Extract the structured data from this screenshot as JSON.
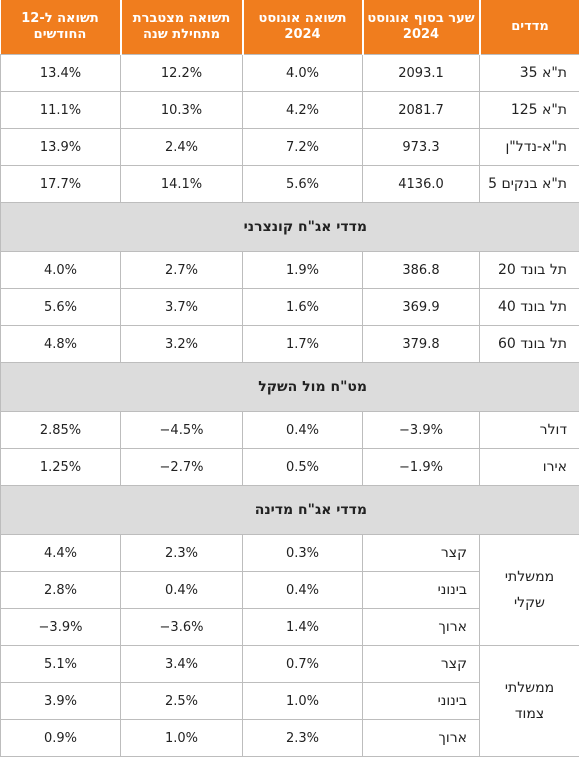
{
  "header": {
    "col_index": "מדדים",
    "col_rate": "שער בסוף אוגוסט 2024",
    "col_aug": "תשואה אוגוסט 2024",
    "col_ytd": "תשואה מצטברת מתחילת שנה",
    "col_12m": "תשואה ל-12 החודשים"
  },
  "stocks": [
    {
      "name": "ת\"א 35",
      "rate": "2093.1",
      "aug": "4.0%",
      "ytd": "12.2%",
      "m12": "13.4%"
    },
    {
      "name": "ת\"א 125",
      "rate": "2081.7",
      "aug": "4.2%",
      "ytd": "10.3%",
      "m12": "11.1%"
    },
    {
      "name": "ת\"א-נדל\"ן",
      "rate": "973.3",
      "aug": "7.2%",
      "ytd": "2.4%",
      "m12": "13.9%"
    },
    {
      "name": "ת\"א בנקים 5",
      "rate": "4136.0",
      "aug": "5.6%",
      "ytd": "14.1%",
      "m12": "17.7%"
    }
  ],
  "section_corp": "מדדי אג\"ח קונצרני",
  "corp": [
    {
      "name": "תל בונד 20",
      "rate": "386.8",
      "aug": "1.9%",
      "ytd": "2.7%",
      "m12": "4.0%"
    },
    {
      "name": "תל בונד 40",
      "rate": "369.9",
      "aug": "1.6%",
      "ytd": "3.7%",
      "m12": "5.6%"
    },
    {
      "name": "תל בונד 60",
      "rate": "379.8",
      "aug": "1.7%",
      "ytd": "3.2%",
      "m12": "4.8%"
    }
  ],
  "section_fx": "מט\"ח מול השקל",
  "fx": [
    {
      "name": "דולר",
      "rate": "−3.9%",
      "aug": "0.4%",
      "ytd": "−4.5%",
      "m12": "2.85%"
    },
    {
      "name": "אירו",
      "rate": "−1.9%",
      "aug": "0.5%",
      "ytd": "−2.7%",
      "m12": "1.25%"
    }
  ],
  "section_gov": "מדדי אג\"ח מדינה",
  "gov_shekel_label_1": "ממשלתי",
  "gov_shekel_label_2": "שקלי",
  "gov_shekel": [
    {
      "name": "קצר",
      "aug": "0.3%",
      "ytd": "2.3%",
      "m12": "4.4%"
    },
    {
      "name": "בינוני",
      "aug": "0.4%",
      "ytd": "0.4%",
      "m12": "2.8%"
    },
    {
      "name": "ארוך",
      "aug": "1.4%",
      "ytd": "−3.6%",
      "m12": "−3.9%"
    }
  ],
  "gov_linked_label_1": "ממשלתי",
  "gov_linked_label_2": "צמוד",
  "gov_linked": [
    {
      "name": "קצר",
      "aug": "0.7%",
      "ytd": "3.4%",
      "m12": "5.1%"
    },
    {
      "name": "בינוני",
      "aug": "1.0%",
      "ytd": "2.5%",
      "m12": "3.9%"
    },
    {
      "name": "ארוך",
      "aug": "2.3%",
      "ytd": "1.0%",
      "m12": "0.9%"
    }
  ]
}
